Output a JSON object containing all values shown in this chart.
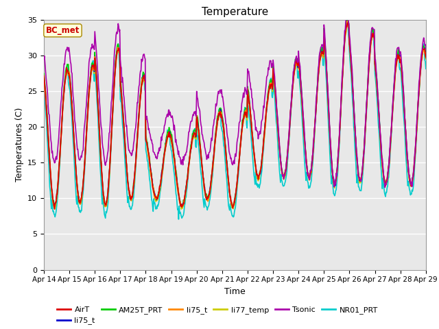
{
  "title": "Temperature",
  "xlabel": "Time",
  "ylabel": "Temperatures (C)",
  "ylim": [
    0,
    35
  ],
  "yticks": [
    0,
    5,
    10,
    15,
    20,
    25,
    30,
    35
  ],
  "annotation_text": "BC_met",
  "annotation_color": "#cc0000",
  "annotation_bg": "#ffffdd",
  "annotation_border": "#aa8800",
  "series": [
    {
      "name": "AirT",
      "color": "#dd0000",
      "lw": 1.2,
      "zorder": 5
    },
    {
      "name": "li75_t",
      "color": "#0000cc",
      "lw": 1.2,
      "zorder": 4
    },
    {
      "name": "AM25T_PRT",
      "color": "#00cc00",
      "lw": 1.2,
      "zorder": 3
    },
    {
      "name": "li75_t",
      "color": "#ff8800",
      "lw": 1.2,
      "zorder": 4
    },
    {
      "name": "li77_temp",
      "color": "#cccc00",
      "lw": 1.2,
      "zorder": 3
    },
    {
      "name": "Tsonic",
      "color": "#aa00aa",
      "lw": 1.2,
      "zorder": 6
    },
    {
      "name": "NR01_PRT",
      "color": "#00cccc",
      "lw": 1.2,
      "zorder": 2
    }
  ],
  "bg_color": "#e8e8e8",
  "grid_color": "#ffffff",
  "xtick_labels": [
    "Apr 14",
    "Apr 15",
    "Apr 16",
    "Apr 17",
    "Apr 18",
    "Apr 19",
    "Apr 20",
    "Apr 21",
    "Apr 22",
    "Apr 23",
    "Apr 24",
    "Apr 25",
    "Apr 26",
    "Apr 27",
    "Apr 28",
    "Apr 29"
  ],
  "xtick_positions": [
    0,
    1,
    2,
    3,
    4,
    5,
    6,
    7,
    8,
    9,
    10,
    11,
    12,
    13,
    14,
    15
  ],
  "day_mins": [
    9.0,
    9.5,
    9.0,
    10.0,
    10.0,
    9.0,
    10.0,
    9.0,
    13.0,
    13.0,
    13.0,
    12.0,
    12.5,
    12.0,
    12.0
  ],
  "day_maxs": [
    28.0,
    28.5,
    31.0,
    27.0,
    19.0,
    19.0,
    22.0,
    22.0,
    26.0,
    29.0,
    30.5,
    34.5,
    33.0,
    30.0,
    31.0
  ]
}
